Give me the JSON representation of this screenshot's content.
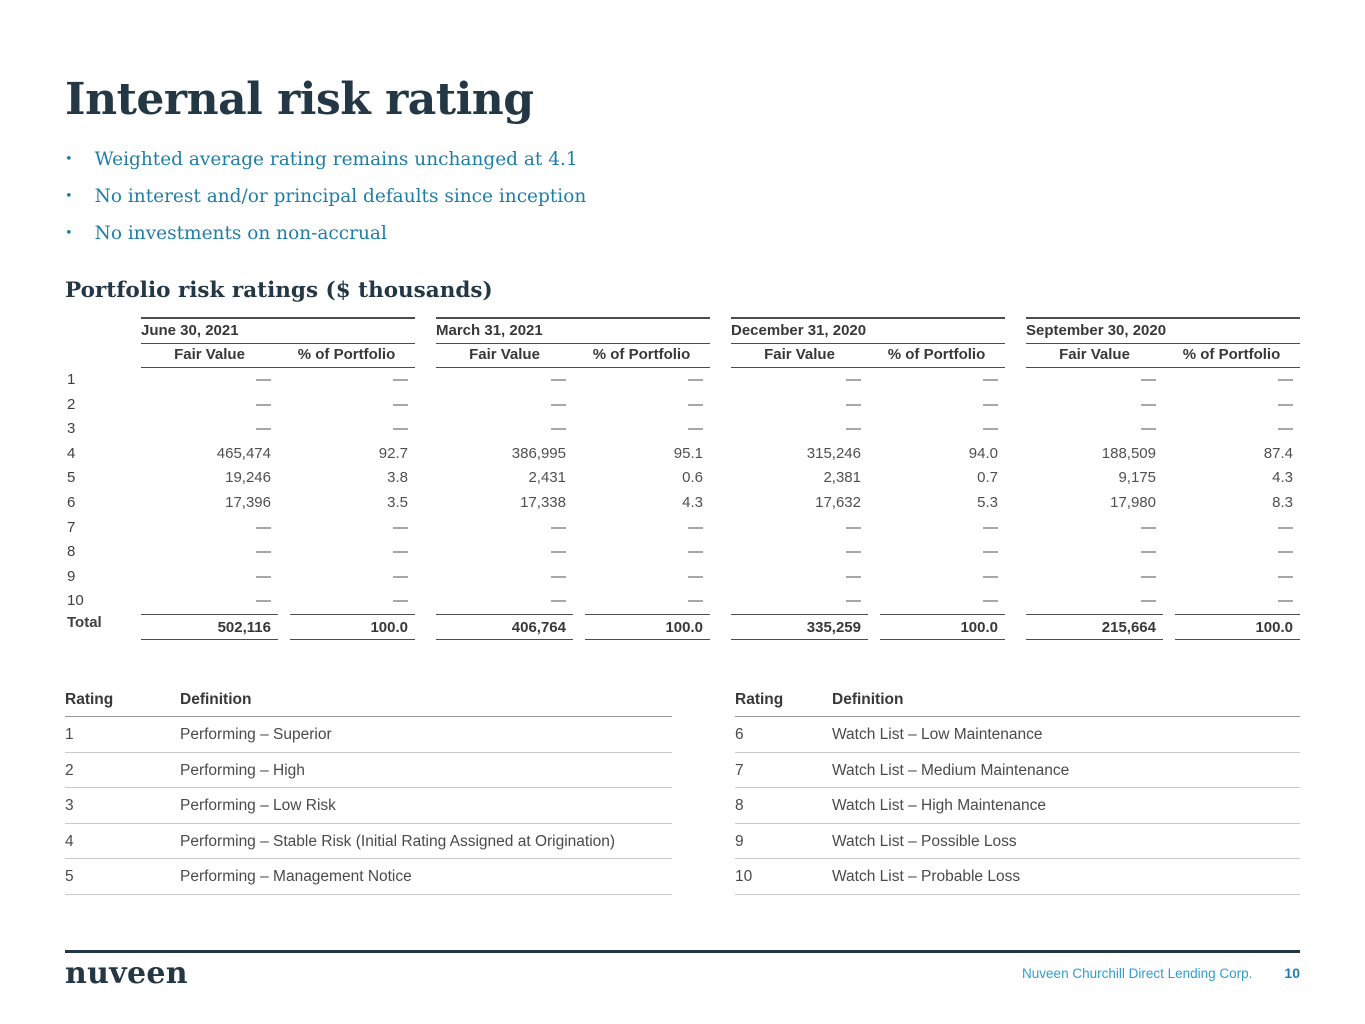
{
  "page": {
    "title": "Internal risk rating",
    "bullets": [
      "Weighted average rating remains unchanged at 4.1",
      "No interest and/or principal defaults since inception",
      "No investments on non-accrual"
    ],
    "section_heading": "Portfolio risk ratings ($ thousands)"
  },
  "risk_table": {
    "group_headers": [
      "June 30, 2021",
      "March 31, 2021",
      "December 31, 2020",
      "September 30, 2020"
    ],
    "sub_headers": [
      "Fair Value",
      "% of Portfolio"
    ],
    "rows": [
      {
        "label": "1",
        "values": [
          "—",
          "—",
          "—",
          "—",
          "—",
          "—",
          "—",
          "—"
        ]
      },
      {
        "label": "2",
        "values": [
          "—",
          "—",
          "—",
          "—",
          "—",
          "—",
          "—",
          "—"
        ]
      },
      {
        "label": "3",
        "values": [
          "—",
          "—",
          "—",
          "—",
          "—",
          "—",
          "—",
          "—"
        ]
      },
      {
        "label": "4",
        "values": [
          "465,474",
          "92.7",
          "386,995",
          "95.1",
          "315,246",
          "94.0",
          "188,509",
          "87.4"
        ]
      },
      {
        "label": "5",
        "values": [
          "19,246",
          "3.8",
          "2,431",
          "0.6",
          "2,381",
          "0.7",
          "9,175",
          "4.3"
        ]
      },
      {
        "label": "6",
        "values": [
          "17,396",
          "3.5",
          "17,338",
          "4.3",
          "17,632",
          "5.3",
          "17,980",
          "8.3"
        ]
      },
      {
        "label": "7",
        "values": [
          "—",
          "—",
          "—",
          "—",
          "—",
          "—",
          "—",
          "—"
        ]
      },
      {
        "label": "8",
        "values": [
          "—",
          "—",
          "—",
          "—",
          "—",
          "—",
          "—",
          "—"
        ]
      },
      {
        "label": "9",
        "values": [
          "—",
          "—",
          "—",
          "—",
          "—",
          "—",
          "—",
          "—"
        ]
      },
      {
        "label": "10",
        "values": [
          "—",
          "—",
          "—",
          "—",
          "—",
          "—",
          "—",
          "—"
        ]
      }
    ],
    "total": {
      "label": "Total",
      "values": [
        "502,116",
        "100.0",
        "406,764",
        "100.0",
        "335,259",
        "100.0",
        "215,664",
        "100.0"
      ]
    }
  },
  "definitions": {
    "rating_header": "Rating",
    "definition_header": "Definition",
    "left": [
      {
        "rating": "1",
        "definition": "Performing – Superior"
      },
      {
        "rating": "2",
        "definition": "Performing – High"
      },
      {
        "rating": "3",
        "definition": "Performing – Low Risk"
      },
      {
        "rating": "4",
        "definition": "Performing – Stable Risk (Initial Rating Assigned at Origination)"
      },
      {
        "rating": "5",
        "definition": "Performing – Management Notice"
      }
    ],
    "right": [
      {
        "rating": "6",
        "definition": "Watch List – Low Maintenance"
      },
      {
        "rating": "7",
        "definition": "Watch List – Medium Maintenance"
      },
      {
        "rating": "8",
        "definition": "Watch List – High Maintenance"
      },
      {
        "rating": "9",
        "definition": "Watch List – Possible Loss"
      },
      {
        "rating": "10",
        "definition": "Watch List – Probable Loss"
      }
    ]
  },
  "footer": {
    "logo": "nuveen",
    "company": "Nuveen Churchill Direct Lending Corp.",
    "page_number": "10"
  },
  "colors": {
    "navy": "#243744",
    "teal": "#1f7ea8",
    "footer_blue": "#2d9ecf",
    "page_number_blue": "#1a7fb5"
  }
}
